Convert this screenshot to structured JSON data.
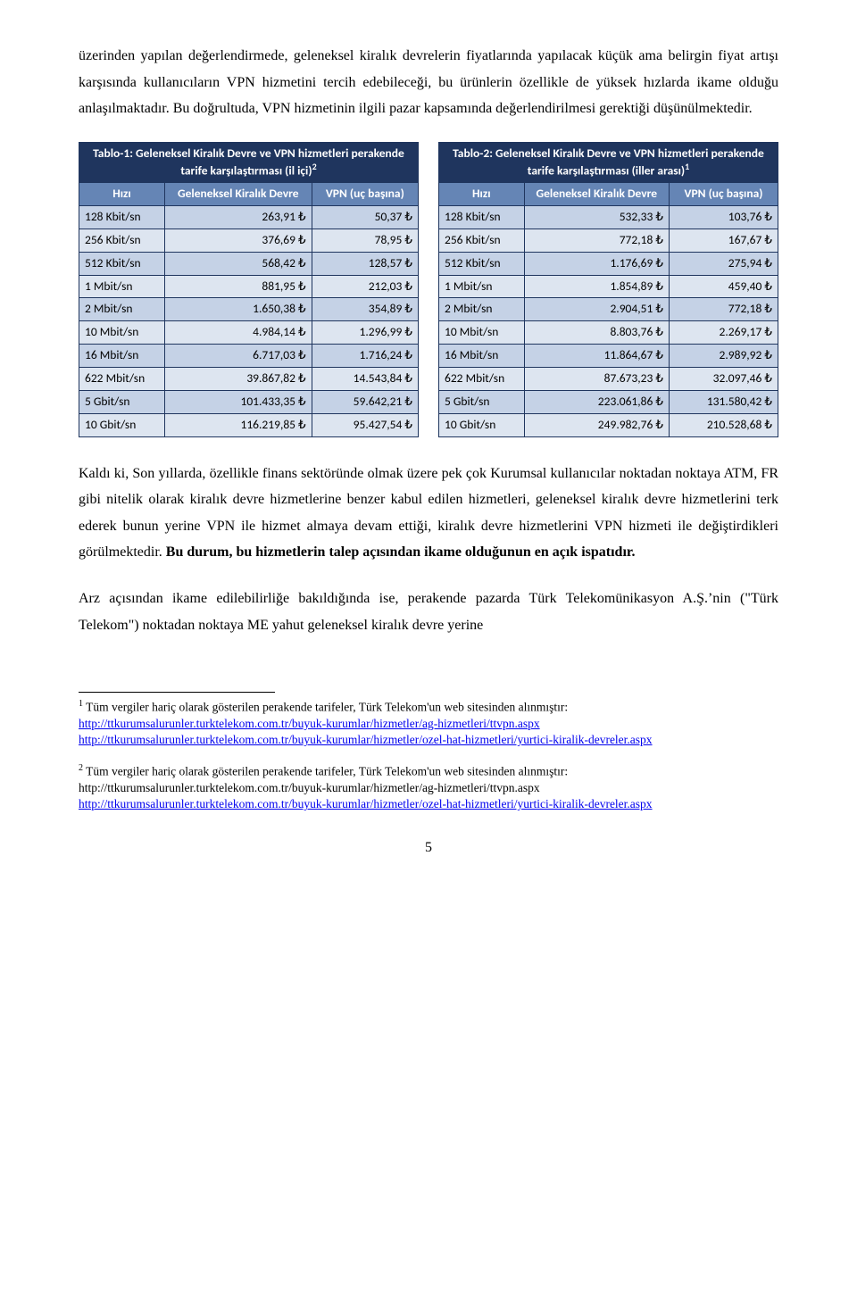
{
  "paragraphs": {
    "p1": "üzerinden yapılan değerlendirmede, geleneksel kiralık devrelerin fiyatlarında yapılacak küçük ama belirgin fiyat artışı karşısında kullanıcıların VPN hizmetini tercih edebileceği, bu ürünlerin özellikle de yüksek hızlarda ikame olduğu anlaşılmaktadır. Bu doğrultuda, VPN hizmetinin ilgili pazar kapsamında değerlendirilmesi gerektiği düşünülmektedir.",
    "p2_before_bold": "Kaldı ki, Son yıllarda, özellikle finans sektöründe olmak üzere pek çok Kurumsal kullanıcılar noktadan noktaya ATM, FR gibi nitelik olarak kiralık devre hizmetlerine benzer kabul edilen hizmetleri, geleneksel kiralık devre hizmetlerini terk ederek bunun yerine VPN ile hizmet almaya devam ettiği, kiralık devre hizmetlerini VPN hizmeti ile değiştirdikleri görülmektedir. ",
    "p2_bold": "Bu durum, bu hizmetlerin talep açısından ikame olduğunun en açık ispatıdır.",
    "p3": "Arz açısından ikame edilebilirliğe bakıldığında ise, perakende pazarda Türk Telekomünikasyon A.Ş.’nin (\"Türk Telekom\") noktadan noktaya ME yahut geleneksel kiralık devre yerine"
  },
  "table1": {
    "title_a": "Tablo-1: Geleneksel Kiralık Devre ve VPN hizmetleri perakende tarife karşılaştırması (il içi)",
    "sup": "2",
    "headers": {
      "c1": "Hızı",
      "c2": "Geleneksel Kiralık Devre",
      "c3": "VPN (uç başına)"
    },
    "rows": [
      {
        "c1": "128 Kbit/sn",
        "c2": "263,91 ₺",
        "c3": "50,37 ₺"
      },
      {
        "c1": "256 Kbit/sn",
        "c2": "376,69 ₺",
        "c3": "78,95 ₺"
      },
      {
        "c1": "512 Kbit/sn",
        "c2": "568,42 ₺",
        "c3": "128,57 ₺"
      },
      {
        "c1": "1 Mbit/sn",
        "c2": "881,95 ₺",
        "c3": "212,03 ₺"
      },
      {
        "c1": "2 Mbit/sn",
        "c2": "1.650,38 ₺",
        "c3": "354,89 ₺"
      },
      {
        "c1": "10 Mbit/sn",
        "c2": "4.984,14 ₺",
        "c3": "1.296,99 ₺"
      },
      {
        "c1": "16 Mbit/sn",
        "c2": "6.717,03 ₺",
        "c3": "1.716,24 ₺"
      },
      {
        "c1": "622 Mbit/sn",
        "c2": "39.867,82 ₺",
        "c3": "14.543,84 ₺"
      },
      {
        "c1": "5 Gbit/sn",
        "c2": "101.433,35 ₺",
        "c3": "59.642,21 ₺"
      },
      {
        "c1": "10 Gbit/sn",
        "c2": "116.219,85 ₺",
        "c3": "95.427,54 ₺"
      }
    ]
  },
  "table2": {
    "title_a": "Tablo-2: Geleneksel Kiralık Devre ve VPN hizmetleri perakende tarife karşılaştırması (iller arası)",
    "sup": "1",
    "headers": {
      "c1": "Hızı",
      "c2": "Geleneksel Kiralık Devre",
      "c3": "VPN (uç başına)"
    },
    "rows": [
      {
        "c1": "128 Kbit/sn",
        "c2": "532,33 ₺",
        "c3": "103,76 ₺"
      },
      {
        "c1": "256 Kbit/sn",
        "c2": "772,18 ₺",
        "c3": "167,67 ₺"
      },
      {
        "c1": "512 Kbit/sn",
        "c2": "1.176,69 ₺",
        "c3": "275,94 ₺"
      },
      {
        "c1": "1 Mbit/sn",
        "c2": "1.854,89 ₺",
        "c3": "459,40 ₺"
      },
      {
        "c1": "2 Mbit/sn",
        "c2": "2.904,51 ₺",
        "c3": "772,18 ₺"
      },
      {
        "c1": "10 Mbit/sn",
        "c2": "8.803,76 ₺",
        "c3": "2.269,17 ₺"
      },
      {
        "c1": "16 Mbit/sn",
        "c2": "11.864,67 ₺",
        "c3": "2.989,92 ₺"
      },
      {
        "c1": "622 Mbit/sn",
        "c2": "87.673,23 ₺",
        "c3": "32.097,46 ₺"
      },
      {
        "c1": "5 Gbit/sn",
        "c2": "223.061,86 ₺",
        "c3": "131.580,42 ₺"
      },
      {
        "c1": "10 Gbit/sn",
        "c2": "249.982,76 ₺",
        "c3": "210.528,68 ₺"
      }
    ]
  },
  "footnotes": {
    "f1_num": "1",
    "f1_text": " Tüm vergiler hariç olarak gösterilen perakende tarifeler, Türk Telekom'un web sitesinden alınmıştır:",
    "f1_link1": "http://ttkurumsalurunler.turktelekom.com.tr/buyuk-kurumlar/hizmetler/ag-hizmetleri/ttvpn.aspx",
    "f1_link2": "http://ttkurumsalurunler.turktelekom.com.tr/buyuk-kurumlar/hizmetler/ozel-hat-hizmetleri/yurtici-kiralik-devreler.aspx",
    "f2_num": "2",
    "f2_text": " Tüm vergiler hariç olarak gösterilen perakende tarifeler, Türk Telekom'un web sitesinden alınmıştır:",
    "f2_plain": "http://ttkurumsalurunler.turktelekom.com.tr/buyuk-kurumlar/hizmetler/ag-hizmetleri/ttvpn.aspx",
    "f2_link": "http://ttkurumsalurunler.turktelekom.com.tr/buyuk-kurumlar/hizmetler/ozel-hat-hizmetleri/yurtici-kiralik-devreler.aspx"
  },
  "page_number": "5",
  "style": {
    "title_bg": "#1f355e",
    "head_bg": "#6585b5",
    "row_a_bg": "#c5d2e6",
    "row_b_bg": "#dde5f0",
    "border_color": "#1f355e",
    "link_color": "#0000ee",
    "body_font": "Times New Roman",
    "table_font": "Calibri"
  }
}
